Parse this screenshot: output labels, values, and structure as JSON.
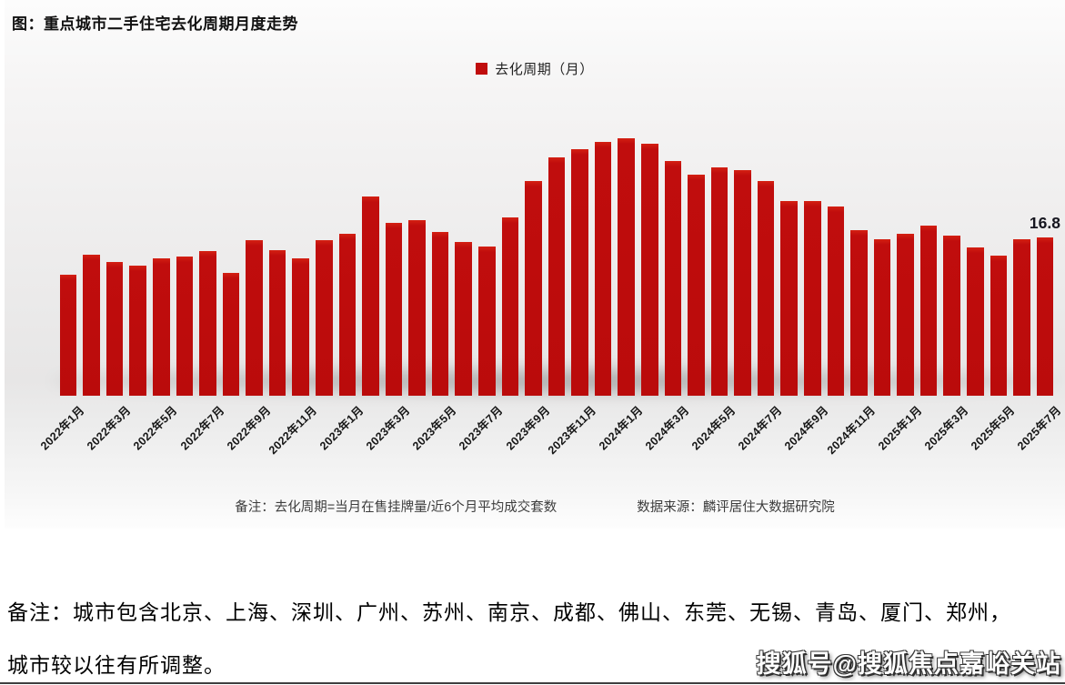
{
  "chart": {
    "title": "图：重点城市二手住宅去化周期月度走势",
    "legend_label": "去化周期（月）",
    "note": "备注：去化周期=当月在售挂牌量/近6个月平均成交套数",
    "source": "数据来源：麟评居住大数据研究院",
    "last_value_label": "16.8",
    "bar_color": "#c00d0d"
  },
  "chart_data": {
    "type": "bar",
    "title": "重点城市二手住宅去化周期月度走势",
    "series_name": "去化周期（月）",
    "xlabel": "",
    "ylabel": "去化周期（月）",
    "ylim": [
      0,
      28
    ],
    "grid": false,
    "legend_position": "top-center",
    "tick_every": 2,
    "x": [
      "2022年1月",
      "2022年2月",
      "2022年3月",
      "2022年4月",
      "2022年5月",
      "2022年6月",
      "2022年7月",
      "2022年8月",
      "2022年9月",
      "2022年10月",
      "2022年11月",
      "2022年12月",
      "2023年1月",
      "2023年2月",
      "2023年3月",
      "2023年4月",
      "2023年5月",
      "2023年6月",
      "2023年7月",
      "2023年8月",
      "2023年9月",
      "2023年10月",
      "2023年11月",
      "2023年12月",
      "2024年1月",
      "2024年2月",
      "2024年3月",
      "2024年4月",
      "2024年5月",
      "2024年6月",
      "2024年7月",
      "2024年8月",
      "2024年9月",
      "2024年10月",
      "2024年11月",
      "2024年12月",
      "2025年1月",
      "2025年2月",
      "2025年3月",
      "2025年4月",
      "2025年5月",
      "2025年6月",
      "2025年7月"
    ],
    "values": [
      12.9,
      15.0,
      14.2,
      13.8,
      14.6,
      14.8,
      15.4,
      13.1,
      16.5,
      15.5,
      14.6,
      16.5,
      17.2,
      21.2,
      18.4,
      18.7,
      17.4,
      16.3,
      15.9,
      19.0,
      22.8,
      25.3,
      26.2,
      27.0,
      27.4,
      26.8,
      25.0,
      23.5,
      24.3,
      24.0,
      22.8,
      20.7,
      20.7,
      20.1,
      17.6,
      16.6,
      17.2,
      18.1,
      17.0,
      15.8,
      14.9,
      16.6,
      16.8
    ],
    "annotations": [
      {
        "x": "2025年7月",
        "text": "16.8"
      }
    ]
  },
  "footer": {
    "note_line1": "备注：城市包含北京、上海、深圳、广州、苏州、南京、成都、佛山、东莞、无锡、青岛、厦门、郑州，",
    "note_line2": "城市较以往有所调整。",
    "watermark": "搜狐号@搜狐焦点嘉峪关站"
  }
}
